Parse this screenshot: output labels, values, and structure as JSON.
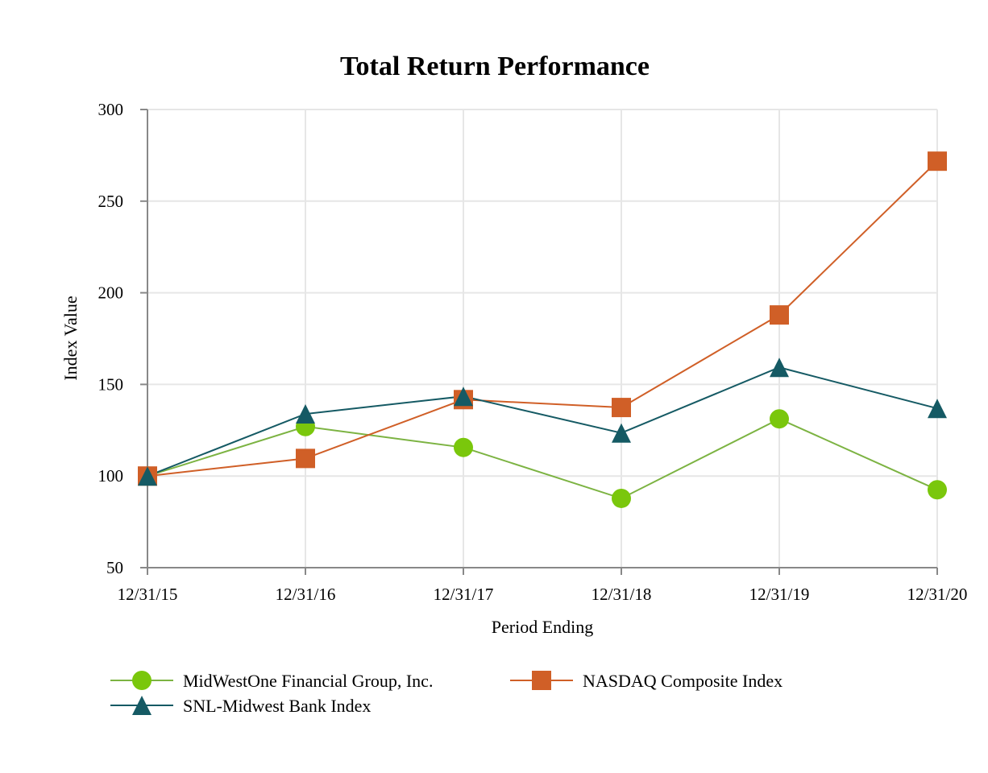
{
  "chart_data": {
    "type": "line",
    "title": "Total Return Performance",
    "xlabel": "Period Ending",
    "ylabel": "Index Value",
    "categories": [
      "12/31/15",
      "12/31/16",
      "12/31/17",
      "12/31/18",
      "12/31/19",
      "12/31/20"
    ],
    "ylim": [
      50,
      300
    ],
    "yticks": [
      50,
      100,
      150,
      200,
      250,
      300
    ],
    "grid": true,
    "legend_position": "bottom",
    "series": [
      {
        "name": "MidWestOne Financial Group, Inc.",
        "values": [
          100,
          127.0,
          115.6,
          87.8,
          131.2,
          92.5
        ],
        "color": "#7ac70c",
        "line_color": "#7cb342",
        "marker": "circle"
      },
      {
        "name": "NASDAQ Composite Index",
        "values": [
          100,
          109.6,
          141.7,
          137.4,
          187.9,
          271.8
        ],
        "color": "#d05f27",
        "line_color": "#d05f27",
        "marker": "square"
      },
      {
        "name": "SNL-Midwest Bank Index",
        "values": [
          100,
          133.9,
          143.5,
          123.5,
          159.3,
          136.9
        ],
        "color": "#155a64",
        "line_color": "#155a64",
        "marker": "triangle"
      }
    ]
  }
}
